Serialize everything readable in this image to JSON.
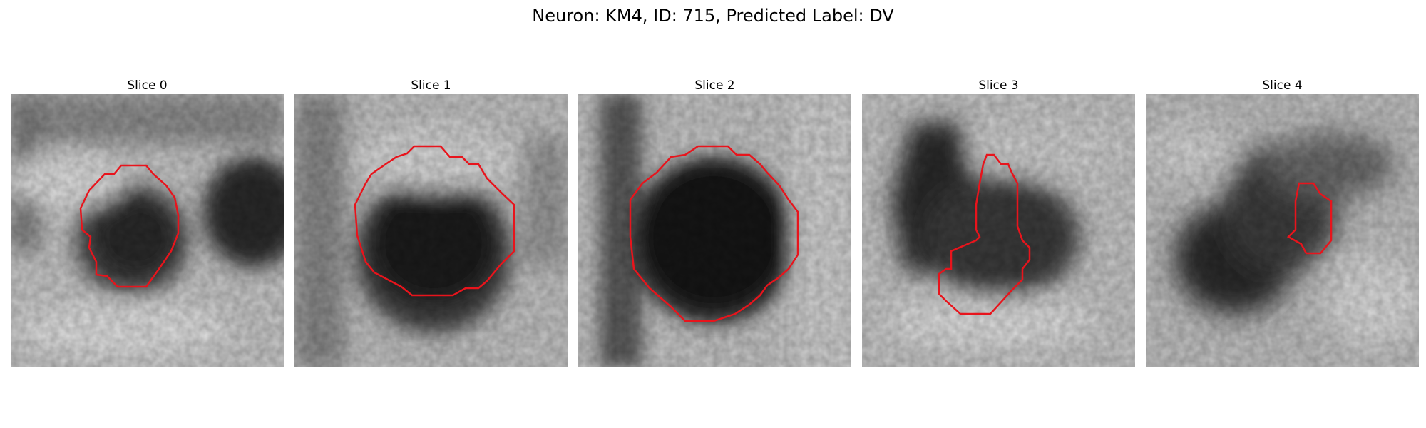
{
  "figure": {
    "title": "Neuron: KM4, ID: 715, Predicted Label: DV"
  },
  "panels": [
    {
      "title": "Slice 0"
    },
    {
      "title": "Slice 1"
    },
    {
      "title": "Slice 2"
    },
    {
      "title": "Slice 3"
    },
    {
      "title": "Slice 4"
    }
  ],
  "colors": {
    "contour": "#e8141c",
    "background": "#ffffff"
  }
}
